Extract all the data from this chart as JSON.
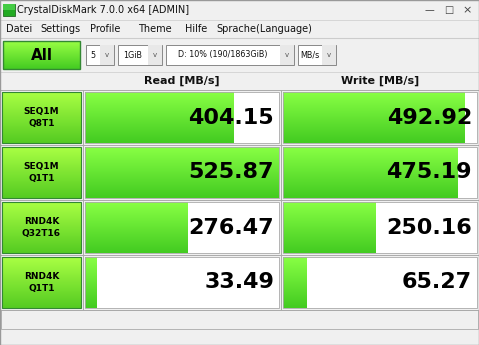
{
  "title": "CrystalDiskMark 7.0.0 x64 [ADMIN]",
  "menu_items": [
    "Datei",
    "Settings",
    "Profile",
    "Theme",
    "Hilfe",
    "Sprache(Language)"
  ],
  "controls": [
    "5",
    "1GiB",
    "D: 10% (190/1863GiB)",
    "MB/s"
  ],
  "all_btn": "All",
  "col_headers": [
    "Read [MB/s]",
    "Write [MB/s]"
  ],
  "rows": [
    {
      "label": "SEQ1M\nQ8T1",
      "read": "404.15",
      "write": "492.92",
      "read_bar": 0.77,
      "write_bar": 0.94
    },
    {
      "label": "SEQ1M\nQ1T1",
      "read": "525.87",
      "write": "475.19",
      "read_bar": 1.0,
      "write_bar": 0.9
    },
    {
      "label": "RND4K\nQ32T16",
      "read": "276.47",
      "write": "250.16",
      "read_bar": 0.53,
      "write_bar": 0.48
    },
    {
      "label": "RND4K\nQ1T1",
      "read": "33.49",
      "write": "65.27",
      "read_bar": 0.064,
      "write_bar": 0.125
    }
  ],
  "bg_color": "#f0f0f0",
  "titlebar_bg": "#f0f0f0",
  "green_mid": "#33dd33",
  "green_bright": "#55ff55",
  "green_light": "#aaffaa",
  "cell_bg": "#ffffff",
  "border_color": "#aaaaaa"
}
